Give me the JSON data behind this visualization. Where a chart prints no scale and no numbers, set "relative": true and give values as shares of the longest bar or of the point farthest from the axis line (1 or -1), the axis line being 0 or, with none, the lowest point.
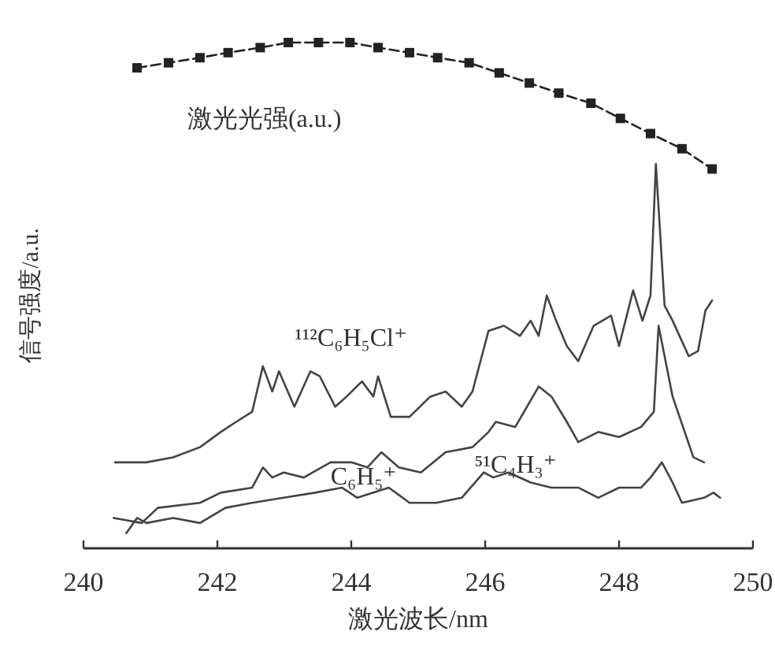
{
  "chart_data": {
    "type": "line",
    "relative": true,
    "xlabel": "激光波长/nm",
    "ylabel": "信号强度/a.u.",
    "xlim": [
      240,
      250
    ],
    "xticks": [
      240,
      242,
      244,
      246,
      248,
      250
    ],
    "grid": false,
    "series": [
      {
        "name": "激光光强(a.u.)",
        "color": "#222222",
        "marker": "square",
        "line_style": "dashed",
        "x": [
          240.8,
          241.27,
          241.74,
          242.16,
          242.64,
          243.06,
          243.51,
          243.98,
          244.4,
          244.87,
          245.29,
          245.76,
          246.21,
          246.66,
          247.1,
          247.58,
          248.02,
          248.47,
          248.94,
          249.39
        ],
        "values": [
          0.95,
          0.96,
          0.97,
          0.98,
          0.99,
          1,
          1,
          1,
          0.99,
          0.98,
          0.97,
          0.96,
          0.94,
          0.92,
          0.9,
          0.88,
          0.85,
          0.82,
          0.79,
          0.75
        ]
      },
      {
        "name": "¹¹²C₆H₅Cl⁺",
        "color": "#444444",
        "x": [
          240.47,
          240.94,
          241.34,
          241.74,
          242.05,
          242.28,
          242.52,
          242.68,
          242.82,
          242.92,
          243.15,
          243.39,
          243.53,
          243.76,
          243.93,
          244.16,
          244.33,
          244.4,
          244.59,
          244.87,
          245.18,
          245.41,
          245.65,
          245.81,
          246.05,
          246.28,
          246.52,
          246.68,
          246.8,
          246.92,
          247.06,
          247.22,
          247.39,
          247.62,
          247.88,
          248.0,
          248.21,
          248.35,
          248.47,
          248.55,
          248.68,
          248.8,
          249.04,
          249.18,
          249.29,
          249.39
        ],
        "values": [
          0.17,
          0.17,
          0.18,
          0.2,
          0.23,
          0.25,
          0.27,
          0.36,
          0.31,
          0.35,
          0.28,
          0.35,
          0.34,
          0.28,
          0.3,
          0.33,
          0.3,
          0.34,
          0.26,
          0.26,
          0.3,
          0.31,
          0.28,
          0.31,
          0.43,
          0.44,
          0.42,
          0.45,
          0.42,
          0.5,
          0.45,
          0.4,
          0.37,
          0.44,
          0.46,
          0.4,
          0.51,
          0.45,
          0.5,
          0.76,
          0.48,
          0.45,
          0.38,
          0.39,
          0.47,
          0.49
        ]
      },
      {
        "name": "C₆H₅⁺",
        "color": "#444444",
        "x": [
          240.45,
          240.87,
          241.11,
          241.74,
          242.05,
          242.52,
          242.68,
          242.82,
          242.99,
          243.29,
          243.69,
          244.0,
          244.24,
          244.45,
          244.71,
          245.04,
          245.41,
          245.81,
          246.05,
          246.16,
          246.45,
          246.8,
          246.99,
          247.22,
          247.39,
          247.69,
          248.0,
          248.33,
          248.52,
          248.59,
          248.8,
          249.11,
          249.27
        ],
        "values": [
          0.06,
          0.05,
          0.08,
          0.09,
          0.11,
          0.12,
          0.16,
          0.14,
          0.15,
          0.14,
          0.17,
          0.17,
          0.16,
          0.19,
          0.16,
          0.15,
          0.19,
          0.2,
          0.23,
          0.25,
          0.24,
          0.32,
          0.3,
          0.25,
          0.21,
          0.23,
          0.22,
          0.24,
          0.27,
          0.44,
          0.3,
          0.18,
          0.17
        ]
      },
      {
        "name": "⁵¹C₄H₃⁺",
        "color": "#444444",
        "x": [
          240.64,
          240.8,
          240.94,
          241.34,
          241.74,
          242.12,
          242.52,
          242.99,
          243.46,
          243.86,
          244.09,
          244.56,
          244.87,
          245.27,
          245.65,
          245.98,
          246.12,
          246.35,
          246.68,
          246.99,
          247.39,
          247.69,
          248.0,
          248.33,
          248.47,
          248.64,
          248.8,
          248.94,
          249.27,
          249.41,
          249.51
        ],
        "values": [
          0.03,
          0.06,
          0.05,
          0.06,
          0.05,
          0.08,
          0.09,
          0.1,
          0.11,
          0.12,
          0.1,
          0.12,
          0.09,
          0.09,
          0.1,
          0.15,
          0.14,
          0.15,
          0.13,
          0.12,
          0.12,
          0.1,
          0.12,
          0.12,
          0.14,
          0.17,
          0.13,
          0.09,
          0.1,
          0.11,
          0.1
        ]
      }
    ]
  }
}
